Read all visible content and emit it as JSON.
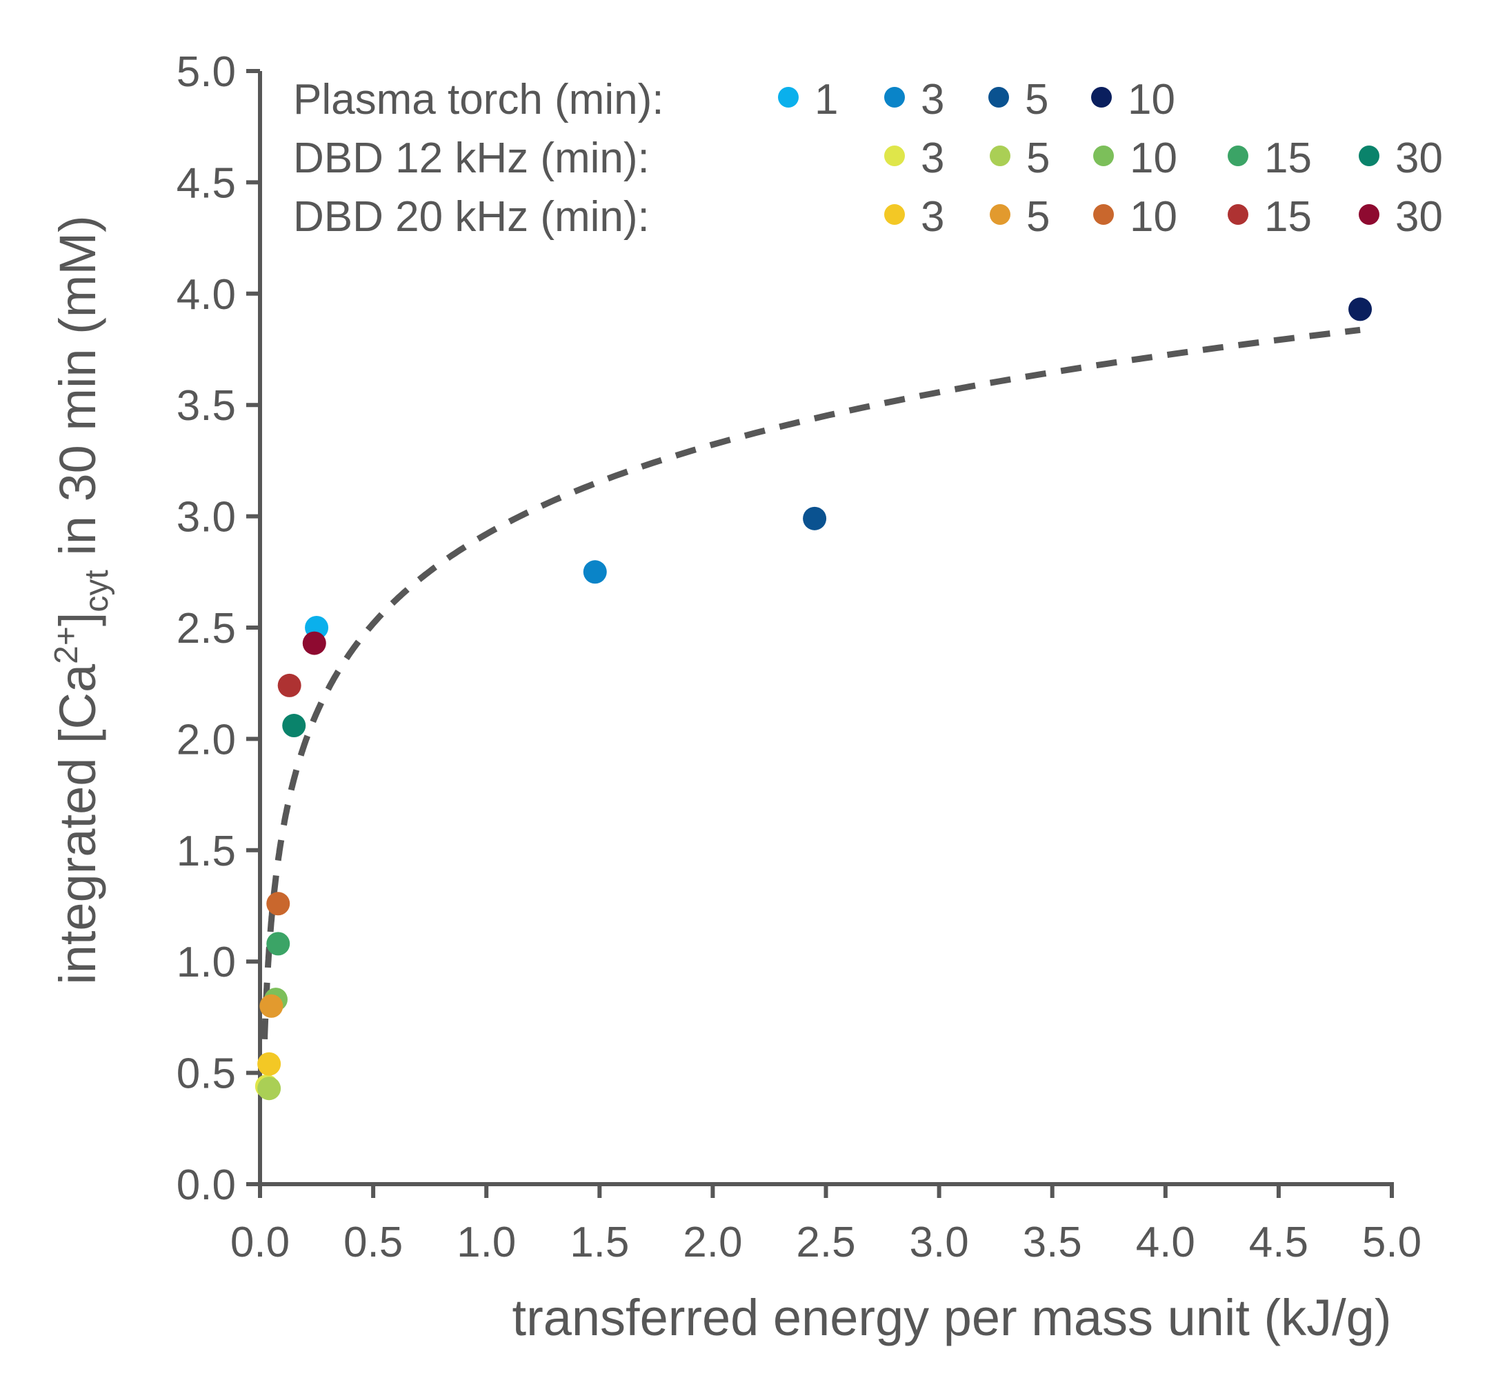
{
  "chart_data": {
    "type": "scatter",
    "xlabel": "transferred energy per mass unit (kJ/g)",
    "ylabel": {
      "prefix": "integrated [Ca",
      "superscript": "2+",
      "mid": "]",
      "subscript": "cyt",
      "suffix": " in 30 min (mM)"
    },
    "xlim": [
      0,
      5
    ],
    "ylim": [
      0,
      5
    ],
    "x_ticks": [
      "0.0",
      "0.5",
      "1.0",
      "1.5",
      "2.0",
      "2.5",
      "3.0",
      "3.5",
      "4.0",
      "4.5",
      "5.0"
    ],
    "y_ticks": [
      "0.0",
      "0.5",
      "1.0",
      "1.5",
      "2.0",
      "2.5",
      "3.0",
      "3.5",
      "4.0",
      "4.5",
      "5.0"
    ],
    "grid": false,
    "legend_position": "top",
    "legend": [
      {
        "label": "Plasma torch (min):",
        "entries": [
          {
            "label": "1",
            "color": "#0AB0EC"
          },
          {
            "label": "3",
            "color": "#0A84C8"
          },
          {
            "label": "5",
            "color": "#0A5290"
          },
          {
            "label": "10",
            "color": "#0A1F5E"
          }
        ]
      },
      {
        "label": "DBD 12 kHz  (min):",
        "entries": [
          {
            "label": "3",
            "color": "#DFE64A"
          },
          {
            "label": "5",
            "color": "#AACF55"
          },
          {
            "label": "10",
            "color": "#7CBF5A"
          },
          {
            "label": "15",
            "color": "#3BA466"
          },
          {
            "label": "30",
            "color": "#0A836B"
          }
        ]
      },
      {
        "label": "DBD 20 kHz  (min):",
        "entries": [
          {
            "label": "3",
            "color": "#F3C825"
          },
          {
            "label": "5",
            "color": "#E29A2E"
          },
          {
            "label": "10",
            "color": "#C9672D"
          },
          {
            "label": "15",
            "color": "#AE3232"
          },
          {
            "label": "30",
            "color": "#8E0A30"
          }
        ]
      }
    ],
    "series": [
      {
        "group": "Plasma torch",
        "time": "1",
        "color": "#0AB0EC",
        "x": 0.25,
        "y": 2.5
      },
      {
        "group": "Plasma torch",
        "time": "3",
        "color": "#0A84C8",
        "x": 1.48,
        "y": 2.75
      },
      {
        "group": "Plasma torch",
        "time": "5",
        "color": "#0A5290",
        "x": 2.45,
        "y": 2.99
      },
      {
        "group": "Plasma torch",
        "time": "10",
        "color": "#0A1F5E",
        "x": 4.86,
        "y": 3.93
      },
      {
        "group": "DBD 12 kHz",
        "time": "3",
        "color": "#DFE64A",
        "x": 0.03,
        "y": 0.44
      },
      {
        "group": "DBD 12 kHz",
        "time": "5",
        "color": "#AACF55",
        "x": 0.04,
        "y": 0.43
      },
      {
        "group": "DBD 12 kHz",
        "time": "10",
        "color": "#7CBF5A",
        "x": 0.07,
        "y": 0.83
      },
      {
        "group": "DBD 12 kHz",
        "time": "15",
        "color": "#3BA466",
        "x": 0.08,
        "y": 1.08
      },
      {
        "group": "DBD 12 kHz",
        "time": "30",
        "color": "#0A836B",
        "x": 0.15,
        "y": 2.06
      },
      {
        "group": "DBD 20 kHz",
        "time": "3",
        "color": "#F3C825",
        "x": 0.04,
        "y": 0.54
      },
      {
        "group": "DBD 20 kHz",
        "time": "5",
        "color": "#E29A2E",
        "x": 0.05,
        "y": 0.8
      },
      {
        "group": "DBD 20 kHz",
        "time": "10",
        "color": "#C9672D",
        "x": 0.08,
        "y": 1.26
      },
      {
        "group": "DBD 20 kHz",
        "time": "15",
        "color": "#AE3232",
        "x": 0.13,
        "y": 2.24
      },
      {
        "group": "DBD 20 kHz",
        "time": "30",
        "color": "#8E0A30",
        "x": 0.24,
        "y": 2.43
      }
    ],
    "trendline": {
      "style": "dashed",
      "color": "#575757",
      "kind": "logarithmic",
      "x_range": [
        0.02,
        4.86
      ],
      "a": 2.92,
      "b": 0.58
    }
  }
}
